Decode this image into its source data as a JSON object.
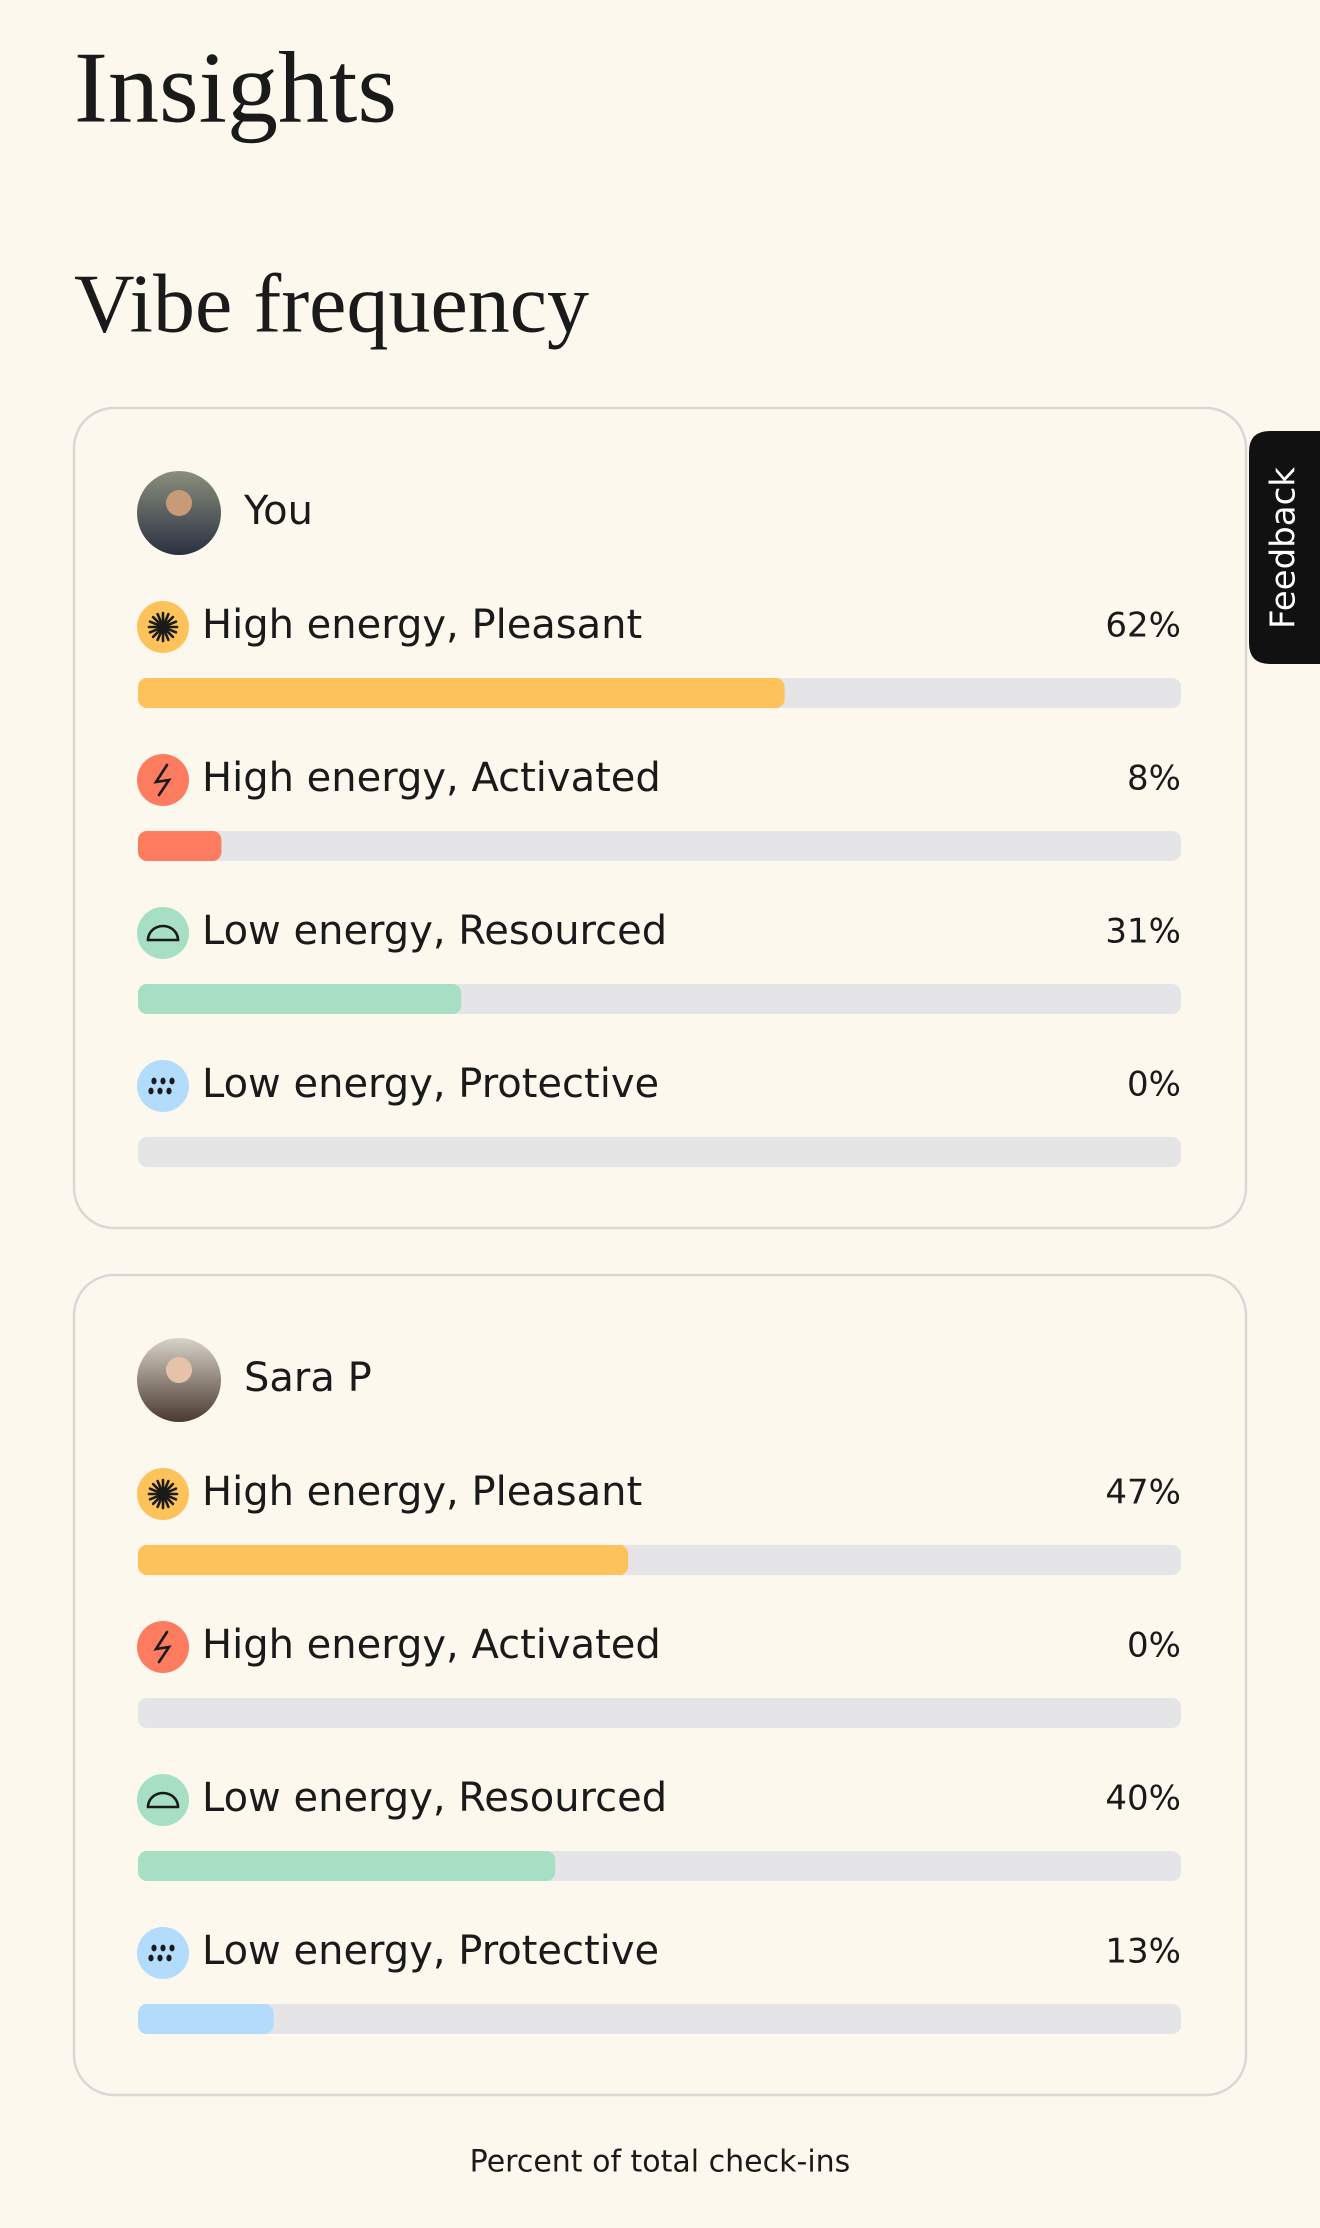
{
  "header": {
    "title": "Insights"
  },
  "section": {
    "title": "Vibe frequency"
  },
  "xlim": [
    0,
    100
  ],
  "cards": [
    {
      "name": "You",
      "rows": [
        {
          "label": "High energy, Pleasant",
          "value": 62,
          "value_label": "62%",
          "color": "#fdc35a"
        },
        {
          "label": "High energy, Activated",
          "value": 8,
          "value_label": "8%",
          "color": "#fd7b5e"
        },
        {
          "label": "Low energy, Resourced",
          "value": 31,
          "value_label": "31%",
          "color": "#a6dfc4"
        },
        {
          "label": "Low energy, Protective",
          "value": 0,
          "value_label": "0%",
          "color": "#b3dbfb"
        }
      ]
    },
    {
      "name": "Sara P",
      "rows": [
        {
          "label": "High energy, Pleasant",
          "value": 47,
          "value_label": "47%",
          "color": "#fdc35a"
        },
        {
          "label": "High energy, Activated",
          "value": 0,
          "value_label": "0%",
          "color": "#fd7b5e"
        },
        {
          "label": "Low energy, Resourced",
          "value": 40,
          "value_label": "40%",
          "color": "#a6dfc4"
        },
        {
          "label": "Low energy, Protective",
          "value": 13,
          "value_label": "13%",
          "color": "#b3dbfb"
        }
      ]
    }
  ],
  "footer": {
    "note": "Percent of total check-ins"
  },
  "feedback": {
    "label": "Feedback"
  }
}
